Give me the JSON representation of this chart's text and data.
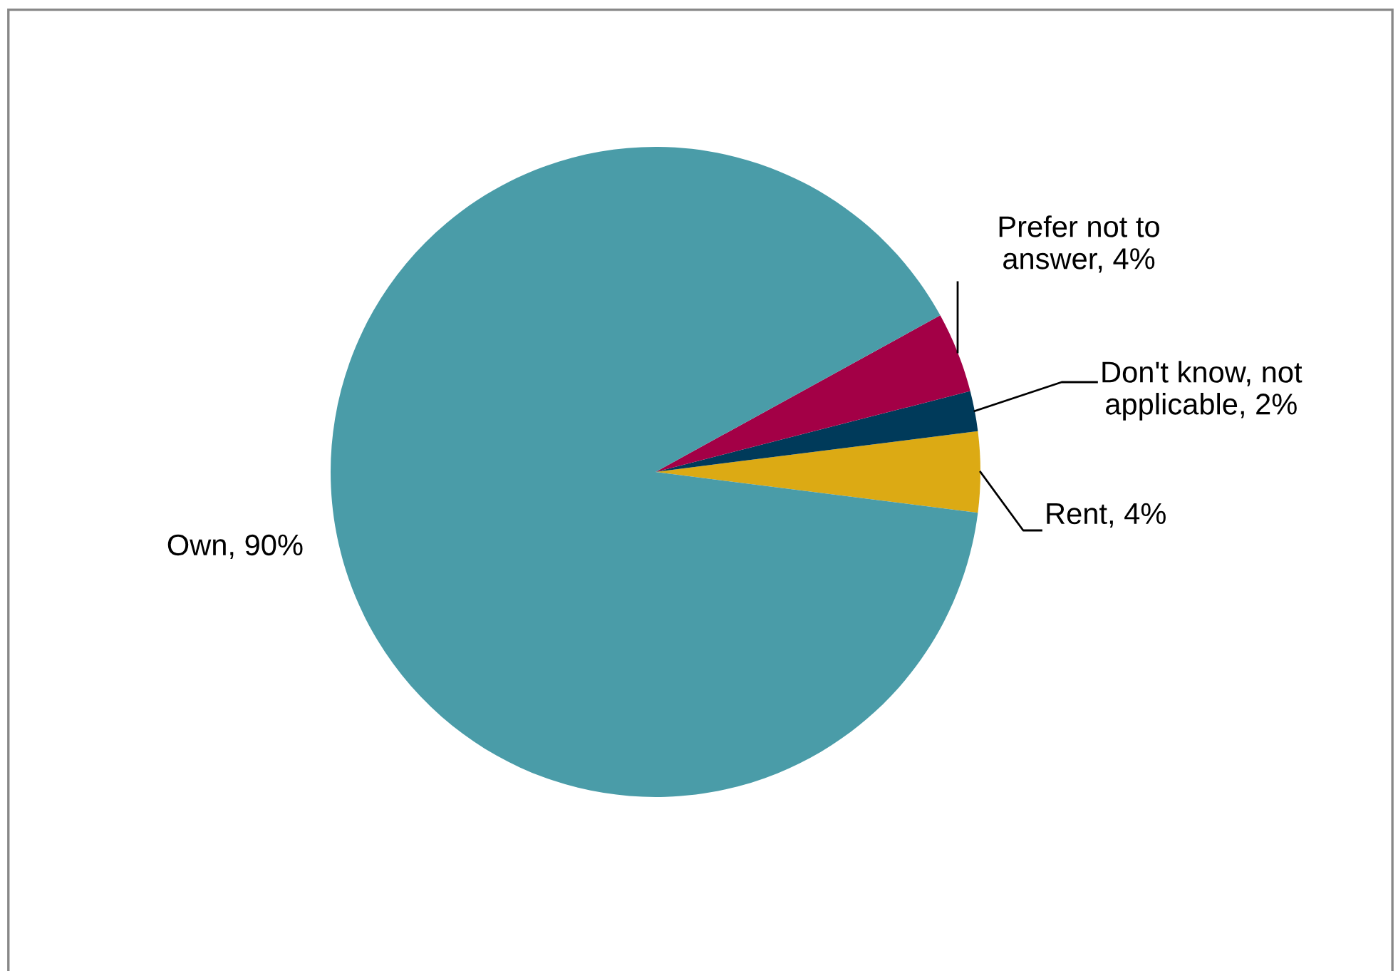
{
  "chart_data": {
    "type": "pie",
    "categories": [
      "Rent, 4%",
      "Don't know, not\napplicable, 2%",
      "Prefer not to\nanswer, 4%",
      "Own, 90%"
    ],
    "values": [
      4,
      2,
      4,
      90
    ],
    "colors": [
      "#dcaa14",
      "#003a5a",
      "#a30046",
      "#4a9ca8"
    ]
  }
}
